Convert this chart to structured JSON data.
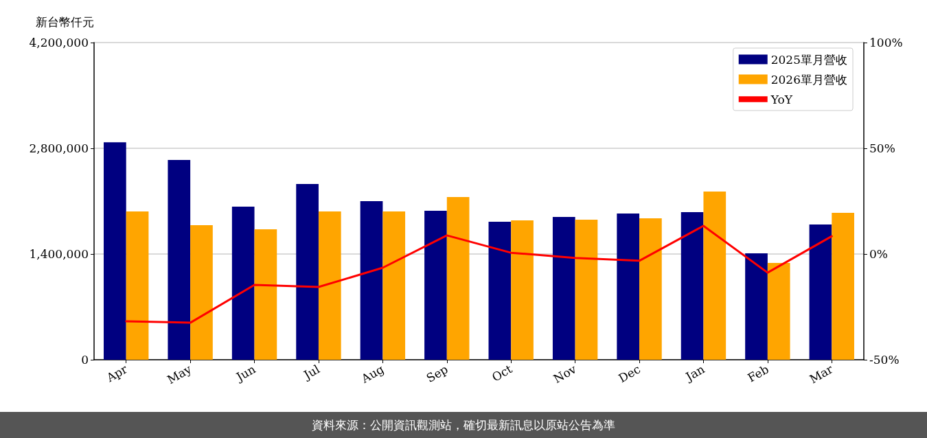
{
  "chart_data": {
    "type": "bar",
    "ylabel": "新台幣仟元",
    "categories": [
      "Apr",
      "May",
      "Jun",
      "Jul",
      "Aug",
      "Sep",
      "Oct",
      "Nov",
      "Dec",
      "Jan",
      "Feb",
      "Mar"
    ],
    "series": [
      {
        "name": "2025單月營收",
        "color": "#000080",
        "values": [
          2880000,
          2645000,
          2027000,
          2327000,
          2100000,
          1973000,
          1827000,
          1891000,
          1936000,
          1955000,
          1409000,
          1791000
        ]
      },
      {
        "name": "2026單月營收",
        "color": "#ffa500",
        "values": [
          1964000,
          1782000,
          1727000,
          1964000,
          1964000,
          2155000,
          1845000,
          1855000,
          1873000,
          2227000,
          1282000,
          1945000
        ]
      },
      {
        "name": "YoY",
        "type": "line",
        "axis": "y2",
        "color": "#ff0000",
        "marker": "none",
        "values": [
          -31.8,
          -32.5,
          -14.6,
          -15.6,
          -6.5,
          8.8,
          0.6,
          -1.9,
          -3.2,
          13.3,
          -8.8,
          8.4
        ]
      }
    ],
    "ylim": [
      0,
      4200000
    ],
    "yticks": [
      {
        "value": 0,
        "label": "0"
      },
      {
        "value": 1400000,
        "label": "1,400,000"
      },
      {
        "value": 2800000,
        "label": "2,800,000"
      },
      {
        "value": 4200000,
        "label": "4,200,000"
      }
    ],
    "y2lim": [
      -50,
      100
    ],
    "y2ticks": [
      {
        "value": -50,
        "label": "-50%"
      },
      {
        "value": 0,
        "label": "0%"
      },
      {
        "value": 50,
        "label": "50%"
      },
      {
        "value": 100,
        "label": "100%"
      }
    ],
    "grid": "y",
    "legend": "top right",
    "annotations": [
      "資料來源：公開資訊觀測站，確切最新訊息以原站公告為準"
    ]
  }
}
